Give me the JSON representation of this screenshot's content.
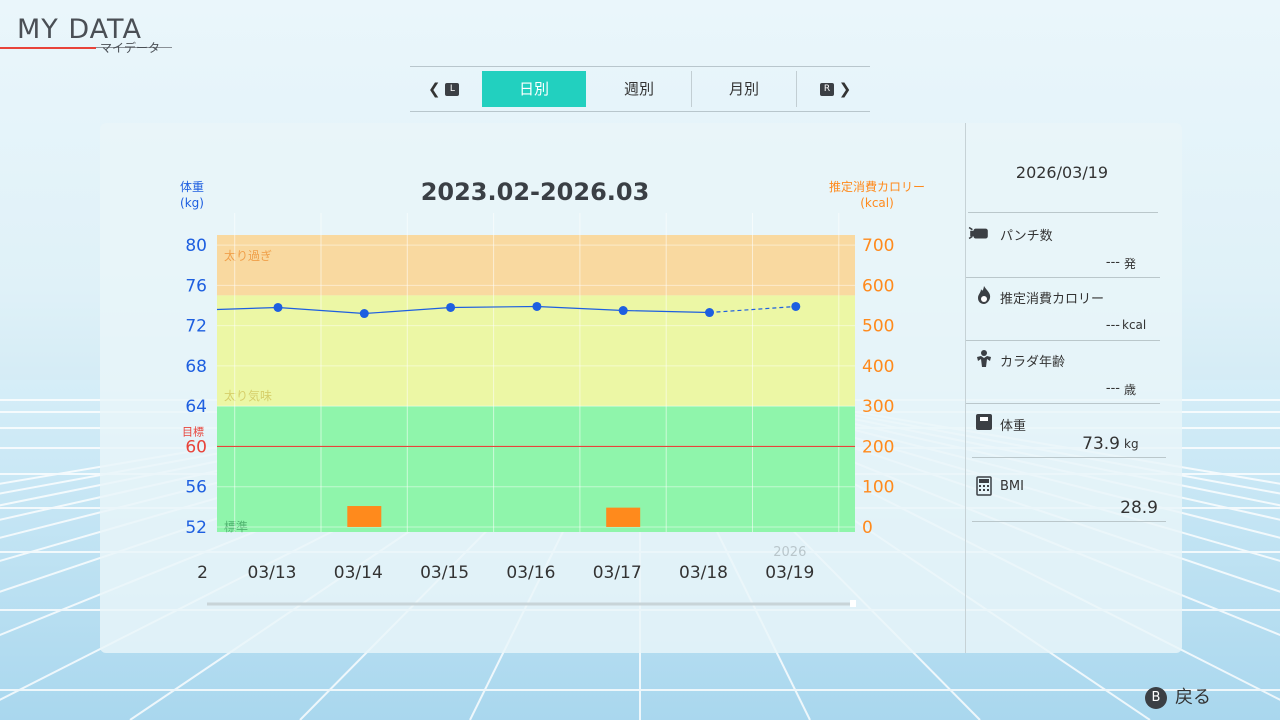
{
  "header": {
    "title": "MY DATA",
    "subtitle": "マイデータ"
  },
  "tabs": {
    "prev_button": "L",
    "next_button": "R",
    "items": [
      {
        "label": "日別",
        "active": true
      },
      {
        "label": "週別",
        "active": false
      },
      {
        "label": "月別",
        "active": false
      }
    ]
  },
  "chart_data": {
    "type": "line",
    "title": "2023.02-2026.03",
    "y_left_label": "体重\n(kg)",
    "y_right_label": "推定消費カロリー\n(kcal)",
    "y_left_ticks": [
      80,
      76,
      72,
      68,
      64,
      60,
      56,
      52
    ],
    "y_right_ticks": [
      700,
      600,
      500,
      400,
      300,
      200,
      100,
      0
    ],
    "ylim_left": [
      52,
      80
    ],
    "ylim_right": [
      0,
      700
    ],
    "x_left_cutoff": "2",
    "x": [
      "03/13",
      "03/14",
      "03/15",
      "03/16",
      "03/17",
      "03/18",
      "03/19"
    ],
    "x_year_label": "2026",
    "weight_series": {
      "values": [
        73.8,
        73.2,
        73.8,
        73.9,
        73.5,
        73.3,
        73.9
      ],
      "leading_value": 73.6,
      "dashed_last_segment": true
    },
    "calorie_bars": {
      "values": [
        null,
        52,
        null,
        null,
        48,
        null,
        null
      ]
    },
    "zones": [
      {
        "label": "太り過ぎ",
        "from": 75,
        "to": 81,
        "color": "#f9d9a0"
      },
      {
        "label": "太り気味",
        "from": 64,
        "to": 75,
        "color": "#ecf7a5"
      },
      {
        "label": "標準",
        "from": 51.5,
        "to": 64,
        "color": "#8ff5ab"
      }
    ],
    "target": {
      "label": "目標",
      "value": 60
    }
  },
  "side": {
    "date": "2026/03/19",
    "rows": [
      {
        "icon": "punch-icon",
        "label": "パンチ数",
        "value": "---",
        "unit": "発"
      },
      {
        "icon": "flame-icon",
        "label": "推定消費カロリー",
        "value": "---",
        "unit": "kcal"
      },
      {
        "icon": "muscle-icon",
        "label": "カラダ年齢",
        "value": "---",
        "unit": "歳"
      },
      {
        "icon": "scale-icon",
        "label": "体重",
        "value": "73.9",
        "unit": "kg"
      },
      {
        "icon": "calculator-icon",
        "label": "BMI",
        "value": "28.9",
        "unit": ""
      }
    ]
  },
  "footer": {
    "back_button": "B",
    "back_label": "戻る"
  },
  "colors": {
    "accent": "#22d0bf",
    "weight": "#1e5fe0",
    "calorie": "#ff8a1c",
    "target": "#e8433a"
  }
}
